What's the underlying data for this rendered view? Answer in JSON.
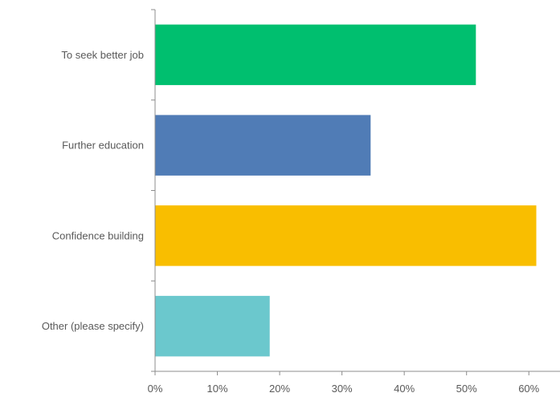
{
  "chart_data": {
    "type": "bar",
    "orientation": "horizontal",
    "categories": [
      "To seek better job",
      "Further education",
      "Confidence building",
      "Other (please specify)"
    ],
    "values": [
      51.5,
      34.6,
      61.2,
      18.4
    ],
    "colors": [
      "#00BF6F",
      "#507CB6",
      "#F9BE00",
      "#6BC8CD"
    ],
    "xlim": [
      0,
      65
    ],
    "xticks": [
      0,
      10,
      20,
      30,
      40,
      50,
      60
    ],
    "xtick_labels": [
      "0%",
      "10%",
      "20%",
      "30%",
      "40%",
      "50%",
      "60%"
    ],
    "title": "",
    "xlabel": "",
    "ylabel": "",
    "grid": false,
    "axis_color": "#8c8c8c"
  }
}
